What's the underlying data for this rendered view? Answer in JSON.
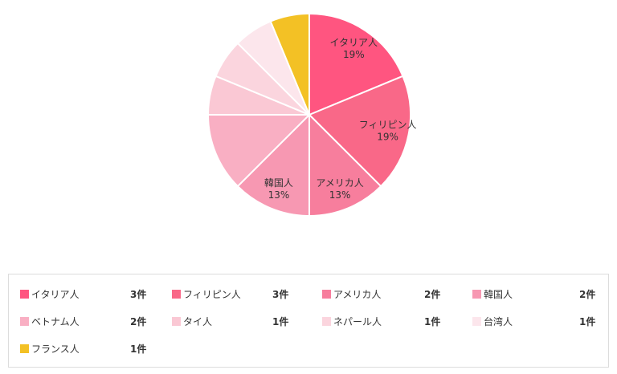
{
  "chart_data": {
    "type": "pie",
    "unit": "件",
    "slices": [
      {
        "label": "イタリア人",
        "value": 3,
        "percent_label": "19%",
        "color": "#ff5580"
      },
      {
        "label": "フィリピン人",
        "value": 3,
        "percent_label": "19%",
        "color": "#f96888"
      },
      {
        "label": "アメリカ人",
        "value": 2,
        "percent_label": "13%",
        "color": "#f77e9d"
      },
      {
        "label": "韓国人",
        "value": 2,
        "percent_label": "13%",
        "color": "#f798b2"
      },
      {
        "label": "ベトナム人",
        "value": 2,
        "percent_label": "",
        "color": "#f9afc3"
      },
      {
        "label": "タイ人",
        "value": 1,
        "percent_label": "",
        "color": "#fac8d4"
      },
      {
        "label": "ネパール人",
        "value": 1,
        "percent_label": "",
        "color": "#fbd5de"
      },
      {
        "label": "台湾人",
        "value": 1,
        "percent_label": "",
        "color": "#fce6ec"
      },
      {
        "label": "フランス人",
        "value": 1,
        "percent_label": "",
        "color": "#f3c125"
      }
    ]
  }
}
